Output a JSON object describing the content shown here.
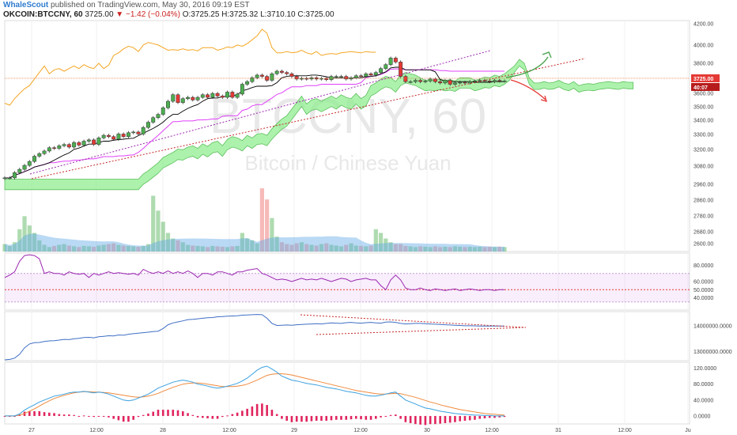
{
  "header": {
    "user": "WhaleScout",
    "published": " published on TradingView.com, May 30, 2016 09:19 EST",
    "symbol": "OKCOIN:BTCCNY, 60",
    "last": "3725.00",
    "change": "▼ −1.42 (−0.04%)",
    "ohlc": "O:3725.25 H:3725.32 L:3710.10 C:3725.00"
  },
  "watermark": {
    "big": "BTCCNY, 60",
    "sub": "Bitcoin / Chinese Yuan"
  },
  "price_labels": {
    "last": "3725.00",
    "countdown": "40:07"
  },
  "colors": {
    "up": "#4caf50",
    "down": "#e53935",
    "ichimoku_cloud": "#90ee90",
    "lagging": "#f5a623",
    "tenkan": "#000000",
    "kijun": "#e040fb",
    "trend": "#9c27b0",
    "trend_red": "#c62828",
    "rsi": "#9c27b0",
    "obv": "#3f6fc4",
    "macd": "#3aa0e0",
    "signal": "#f08a3c",
    "hist": "#e0245e"
  },
  "chart_data": [
    {
      "type": "candlestick",
      "panel": "price",
      "yticks": [
        2600,
        2680,
        2780,
        2860,
        2960,
        3080,
        3200,
        3300,
        3400,
        3500,
        3600,
        3800,
        4000,
        4200
      ],
      "ytick_labels": [
        "2600.00",
        "2680.00",
        "2780.00",
        "2860.00",
        "2960.00",
        "3080.00",
        "3200.00",
        "3300.00",
        "3400.00",
        "3500.00",
        "3600.00",
        "3800.00",
        "4000.00",
        "4200.00"
      ],
      "xticks": [
        "27",
        "12:00",
        "28",
        "12:00",
        "29",
        "12:00",
        "30",
        "12:00",
        "31",
        "12:00",
        "Ju"
      ],
      "close": [
        2985,
        2985,
        3025,
        3050,
        3080,
        3110,
        3150,
        3170,
        3190,
        3215,
        3210,
        3230,
        3240,
        3220,
        3255,
        3235,
        3265,
        3275,
        3240,
        3290,
        3310,
        3300,
        3280,
        3320,
        3300,
        3330,
        3335,
        3320,
        3370,
        3410,
        3445,
        3470,
        3520,
        3570,
        3620,
        3560,
        3590,
        3600,
        3580,
        3600,
        3620,
        3600,
        3630,
        3610,
        3600,
        3640,
        3600,
        3625,
        3700,
        3720,
        3750,
        3770,
        3760,
        3730,
        3780,
        3800,
        3790,
        3780,
        3760,
        3740,
        3745,
        3740,
        3750,
        3740,
        3745,
        3735,
        3760,
        3760,
        3760,
        3740,
        3750,
        3765,
        3760,
        3780,
        3770,
        3790,
        3820,
        3850,
        3900,
        3870,
        3760,
        3720,
        3720,
        3730,
        3720,
        3725,
        3740,
        3720,
        3710,
        3730,
        3700,
        3710,
        3715,
        3710,
        3720,
        3725,
        3730,
        3725,
        3720,
        3730,
        3725,
        3725
      ],
      "volume": [
        20,
        15,
        25,
        60,
        95,
        70,
        50,
        30,
        18,
        12,
        15,
        18,
        20,
        16,
        14,
        12,
        15,
        14,
        13,
        16,
        18,
        20,
        22,
        18,
        16,
        15,
        14,
        13,
        15,
        20,
        150,
        110,
        80,
        50,
        35,
        30,
        25,
        18,
        16,
        15,
        14,
        12,
        15,
        14,
        13,
        12,
        14,
        15,
        50,
        35,
        30,
        22,
        170,
        140,
        90,
        40,
        25,
        20,
        18,
        22,
        25,
        20,
        18,
        16,
        20,
        22,
        18,
        16,
        14,
        18,
        22,
        16,
        15,
        14,
        16,
        60,
        50,
        35,
        25,
        20,
        20,
        15,
        14,
        12,
        14,
        13,
        12,
        14,
        12,
        13,
        12,
        14,
        13,
        12,
        13,
        12,
        13,
        12,
        13,
        12,
        13,
        12
      ]
    },
    {
      "type": "line",
      "panel": "rsi",
      "yticks": [
        40,
        50,
        60,
        80
      ],
      "ytick_labels": [
        "40.0000",
        "50.0000",
        "60.0000",
        "80.0000"
      ],
      "ylim": [
        25,
        95
      ],
      "band": [
        35,
        70
      ],
      "values": [
        65,
        68,
        72,
        85,
        92,
        93,
        92,
        88,
        70,
        72,
        70,
        70,
        68,
        72,
        70,
        69,
        70,
        65,
        70,
        68,
        70,
        72,
        70,
        71,
        70,
        69,
        70,
        68,
        75,
        72,
        70,
        72,
        70,
        73,
        70,
        72,
        70,
        73,
        70,
        65,
        70,
        70,
        68,
        72,
        72,
        70,
        68,
        72,
        72,
        74,
        75,
        76,
        70,
        68,
        65,
        62,
        63,
        62,
        60,
        62,
        64,
        62,
        63,
        62,
        64,
        62,
        60,
        62,
        64,
        63,
        60,
        62,
        63,
        64,
        62,
        62,
        55,
        50,
        62,
        68,
        62,
        52,
        50,
        50,
        52,
        50,
        49,
        51,
        50,
        49,
        50,
        51,
        49,
        50,
        51,
        50,
        49,
        50,
        50,
        49,
        50,
        50
      ]
    },
    {
      "type": "line",
      "panel": "obv",
      "yticks": [
        13000000,
        14000000
      ],
      "ytick_labels": [
        "13000000.0000",
        "14000000.0000"
      ],
      "ylim": [
        12650000,
        14560000
      ],
      "values": [
        12680000,
        12700000,
        12750000,
        12900000,
        13150000,
        13300000,
        13350000,
        13360000,
        13400000,
        13420000,
        13430000,
        13450000,
        13480000,
        13470000,
        13500000,
        13520000,
        13550000,
        13560000,
        13540000,
        13580000,
        13600000,
        13620000,
        13610000,
        13650000,
        13640000,
        13680000,
        13700000,
        13720000,
        13740000,
        13760000,
        13780000,
        13800000,
        13900000,
        14050000,
        14120000,
        14160000,
        14200000,
        14250000,
        14260000,
        14280000,
        14300000,
        14320000,
        14330000,
        14360000,
        14370000,
        14380000,
        14390000,
        14400000,
        14420000,
        14430000,
        14440000,
        14450000,
        14440000,
        14300000,
        14100000,
        14020000,
        14030000,
        14040000,
        14030000,
        14050000,
        14060000,
        14070000,
        14080000,
        14090000,
        14080000,
        14100000,
        14120000,
        14110000,
        14100000,
        14130000,
        14140000,
        14120000,
        14110000,
        14130000,
        14140000,
        14120000,
        14110000,
        14150000,
        14160000,
        14140000,
        14100000,
        14080000,
        14090000,
        14100000,
        14100000,
        14090000,
        14080000,
        14070000,
        14060000,
        14050000,
        14040000,
        14030000,
        14020000,
        14010000,
        14010000,
        14005000,
        14000000,
        14000000,
        14000000,
        13995000,
        14000000,
        14000000
      ]
    },
    {
      "type": "line",
      "panel": "macd",
      "yticks": [
        0,
        40,
        80,
        120
      ],
      "ytick_labels": [
        "0.0000",
        "40.0000",
        "80.0000",
        "120.0000"
      ],
      "ylim": [
        -20,
        135
      ],
      "macd": [
        0,
        0,
        0,
        5,
        15,
        22,
        28,
        35,
        40,
        45,
        50,
        52,
        55,
        58,
        60,
        60,
        62,
        60,
        58,
        60,
        58,
        55,
        50,
        45,
        40,
        38,
        40,
        45,
        50,
        55,
        62,
        70,
        75,
        80,
        85,
        88,
        90,
        88,
        85,
        80,
        78,
        75,
        72,
        70,
        72,
        75,
        78,
        82,
        88,
        95,
        105,
        115,
        122,
        125,
        118,
        110,
        100,
        95,
        90,
        88,
        85,
        82,
        80,
        78,
        75,
        72,
        70,
        68,
        65,
        62,
        60,
        58,
        55,
        52,
        50,
        50,
        52,
        55,
        58,
        60,
        50,
        40,
        35,
        30,
        25,
        20,
        18,
        15,
        12,
        10,
        8,
        6,
        5,
        4,
        3,
        2,
        2,
        1,
        1,
        0,
        0,
        0
      ],
      "signal": [
        0,
        0,
        0,
        2,
        6,
        12,
        18,
        25,
        32,
        38,
        44,
        48,
        52,
        55,
        58,
        60,
        61,
        61,
        60,
        60,
        59,
        58,
        56,
        54,
        52,
        50,
        48,
        47,
        48,
        50,
        53,
        57,
        62,
        67,
        72,
        76,
        80,
        82,
        83,
        83,
        82,
        80,
        78,
        76,
        74,
        74,
        74,
        75,
        77,
        80,
        85,
        90,
        96,
        102,
        105,
        106,
        106,
        105,
        103,
        100,
        97,
        94,
        91,
        88,
        85,
        82,
        79,
        76,
        73,
        70,
        67,
        64,
        62,
        60,
        58,
        56,
        55,
        55,
        56,
        57,
        56,
        53,
        50,
        47,
        43,
        39,
        35,
        32,
        28,
        25,
        22,
        19,
        16,
        14,
        12,
        10,
        8,
        6,
        5,
        4,
        3,
        2
      ]
    }
  ]
}
